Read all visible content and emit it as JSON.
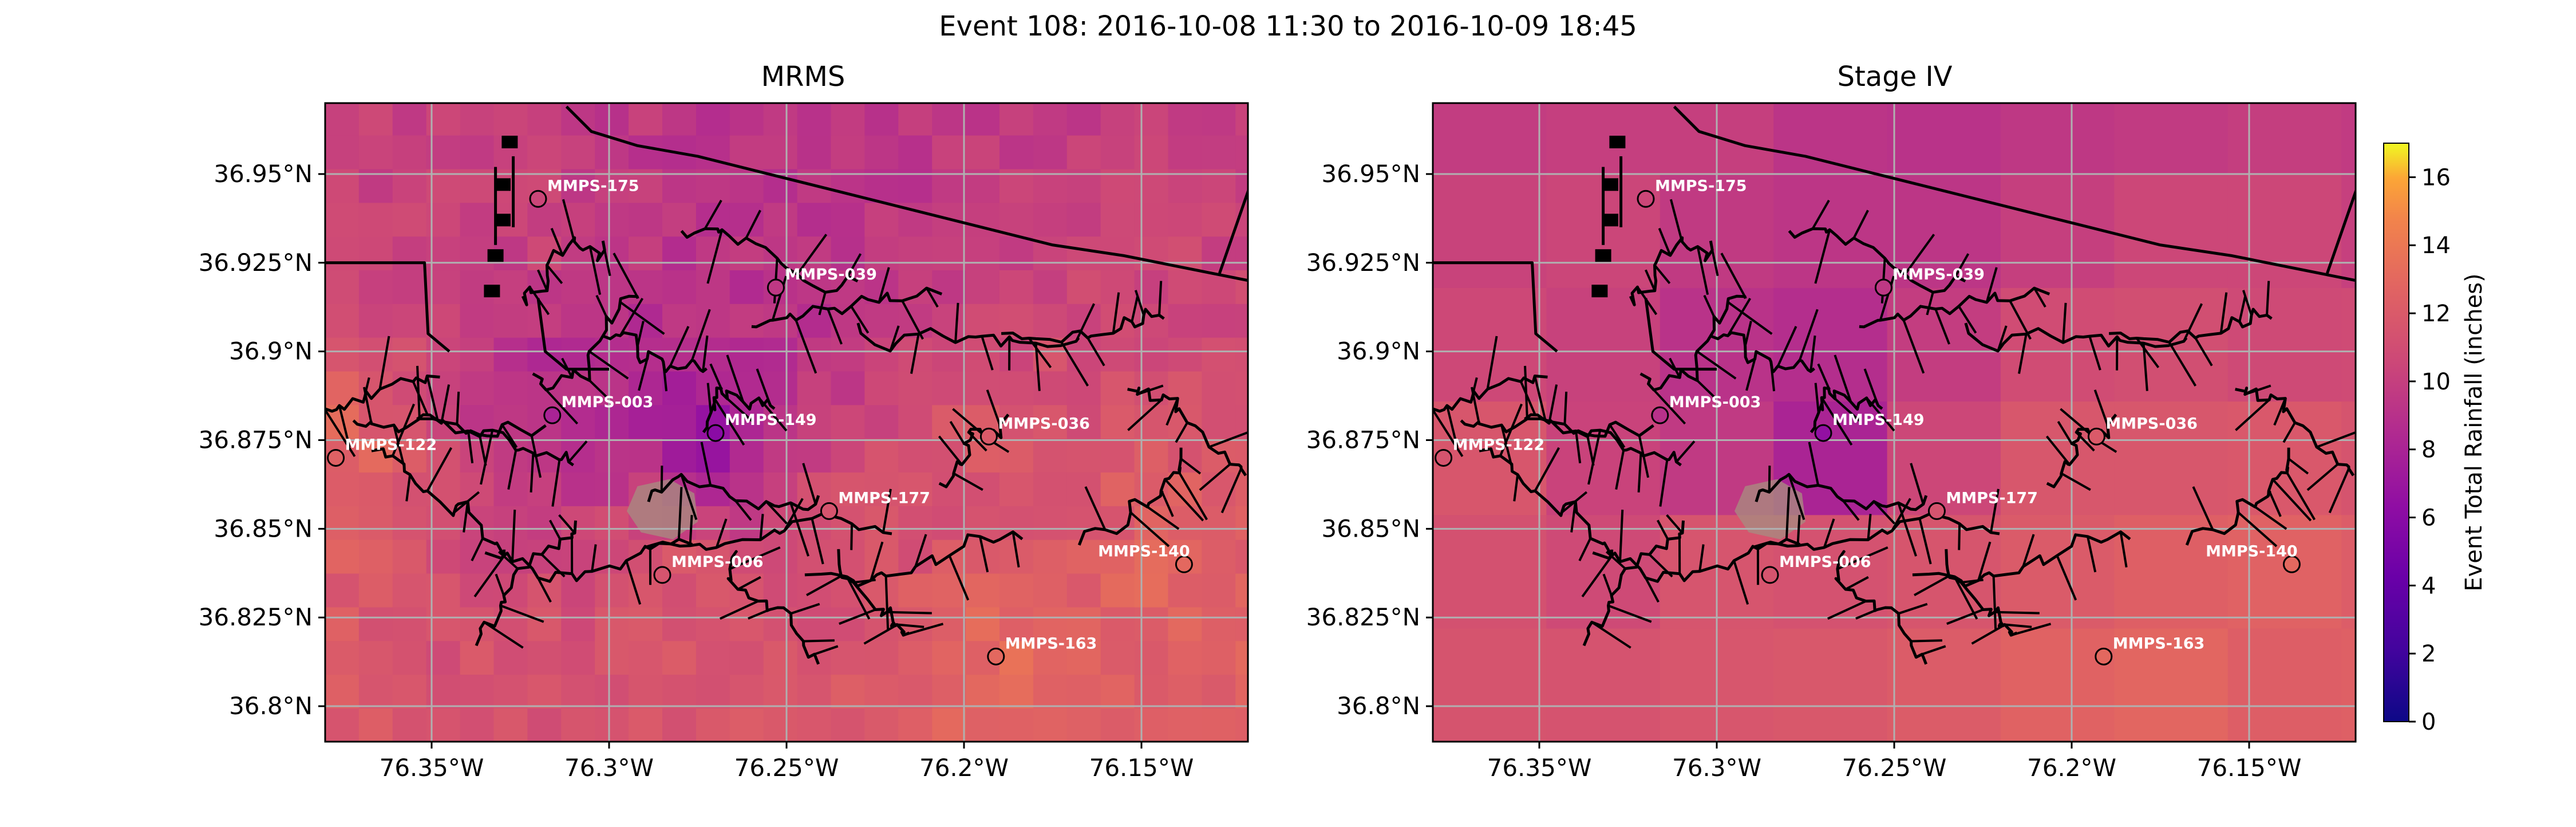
{
  "figure": {
    "suptitle": "Event 108: 2016-10-08 11:30 to 2016-10-09 18:45"
  },
  "axes": {
    "x_ticks": [
      {
        "value": -76.35,
        "label": "76.35°W"
      },
      {
        "value": -76.3,
        "label": "76.3°W"
      },
      {
        "value": -76.25,
        "label": "76.25°W"
      },
      {
        "value": -76.2,
        "label": "76.2°W"
      },
      {
        "value": -76.15,
        "label": "76.15°W"
      }
    ],
    "y_ticks": [
      {
        "value": 36.95,
        "label": "36.95°N"
      },
      {
        "value": 36.925,
        "label": "36.925°N"
      },
      {
        "value": 36.9,
        "label": "36.9°N"
      },
      {
        "value": 36.875,
        "label": "36.875°N"
      },
      {
        "value": 36.85,
        "label": "36.85°N"
      },
      {
        "value": 36.825,
        "label": "36.825°N"
      },
      {
        "value": 36.8,
        "label": "36.8°N"
      }
    ],
    "lon_range": [
      -76.38,
      -76.12
    ],
    "lat_range": [
      36.79,
      36.97
    ],
    "grid": true
  },
  "panels": [
    {
      "id": "mrms",
      "title": "MRMS"
    },
    {
      "id": "stage4",
      "title": "Stage IV"
    }
  ],
  "gauges": [
    {
      "label": "MMPS-175",
      "lon": -76.32,
      "lat": 36.943,
      "mrms_in": 10.5,
      "stage4_in": 10.5
    },
    {
      "label": "MMPS-039",
      "lon": -76.253,
      "lat": 36.918,
      "mrms_in": 9.5,
      "stage4_in": 9.5
    },
    {
      "label": "MMPS-003",
      "lon": -76.316,
      "lat": 36.882,
      "mrms_in": 8.0,
      "stage4_in": 9.0
    },
    {
      "label": "MMPS-149",
      "lon": -76.27,
      "lat": 36.877,
      "mrms_in": 6.0,
      "stage4_in": 6.5
    },
    {
      "label": "MMPS-036",
      "lon": -76.193,
      "lat": 36.876,
      "mrms_in": 12.0,
      "stage4_in": 12.0
    },
    {
      "label": "MMPS-122",
      "lon": -76.377,
      "lat": 36.87,
      "mrms_in": 12.5,
      "stage4_in": 11.5
    },
    {
      "label": "MMPS-177",
      "lon": -76.238,
      "lat": 36.855,
      "mrms_in": 11.5,
      "stage4_in": 11.5
    },
    {
      "label": "MMPS-006",
      "lon": -76.285,
      "lat": 36.837,
      "mrms_in": 11.5,
      "stage4_in": 11.5
    },
    {
      "label": "MMPS-140",
      "lon": -76.138,
      "lat": 36.84,
      "mrms_in": 13.0,
      "stage4_in": 13.0
    },
    {
      "label": "MMPS-163",
      "lon": -76.191,
      "lat": 36.814,
      "mrms_in": 13.0,
      "stage4_in": 13.0
    }
  ],
  "colorbar": {
    "label": "Event Total Rainfall (inches)",
    "colormap": "plasma",
    "range": [
      0,
      17
    ],
    "ticks": [
      0,
      2,
      4,
      6,
      8,
      10,
      12,
      14,
      16
    ]
  },
  "colors": {
    "coastline": "#000000",
    "gridline": "#b0b0b0",
    "inland_patch": "#a98a80"
  }
}
